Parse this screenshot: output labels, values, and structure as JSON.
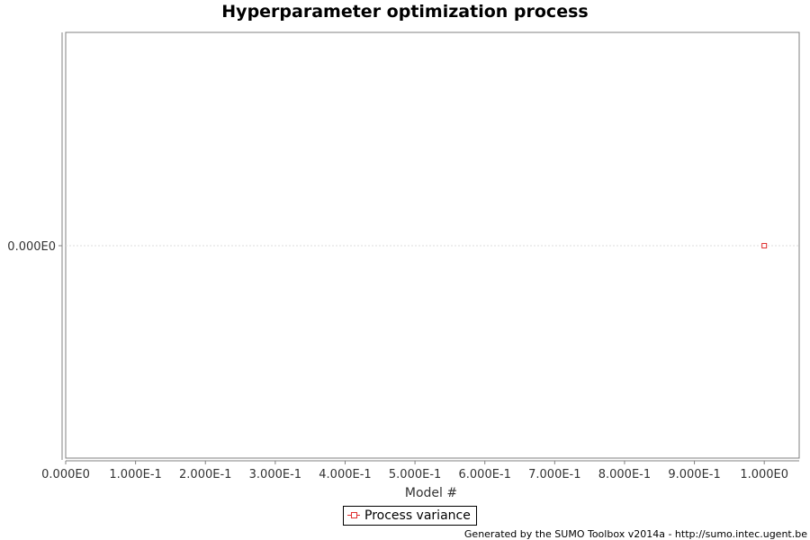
{
  "chart_data": {
    "type": "scatter",
    "title": "Hyperparameter optimization process",
    "xlabel": "Model #",
    "ylabel": "",
    "xlim": [
      0,
      1.05
    ],
    "x_ticks": [
      0,
      0.1,
      0.2,
      0.3,
      0.4,
      0.5,
      0.6,
      0.7,
      0.8,
      0.9,
      1.0
    ],
    "x_tick_labels": [
      "0.000E0",
      "1.000E-1",
      "2.000E-1",
      "3.000E-1",
      "4.000E-1",
      "5.000E-1",
      "6.000E-1",
      "7.000E-1",
      "8.000E-1",
      "9.000E-1",
      "1.000E0"
    ],
    "y_ticks": [
      0
    ],
    "y_tick_labels": [
      "0.000E0"
    ],
    "grid": true,
    "legend_position": "bottom-center",
    "series": [
      {
        "name": "Process variance",
        "color": "#e03030",
        "marker": "square",
        "x": [
          1.0
        ],
        "y": [
          0
        ]
      }
    ]
  },
  "footer": "Generated by the SUMO Toolbox v2014a - http://sumo.intec.ugent.be"
}
